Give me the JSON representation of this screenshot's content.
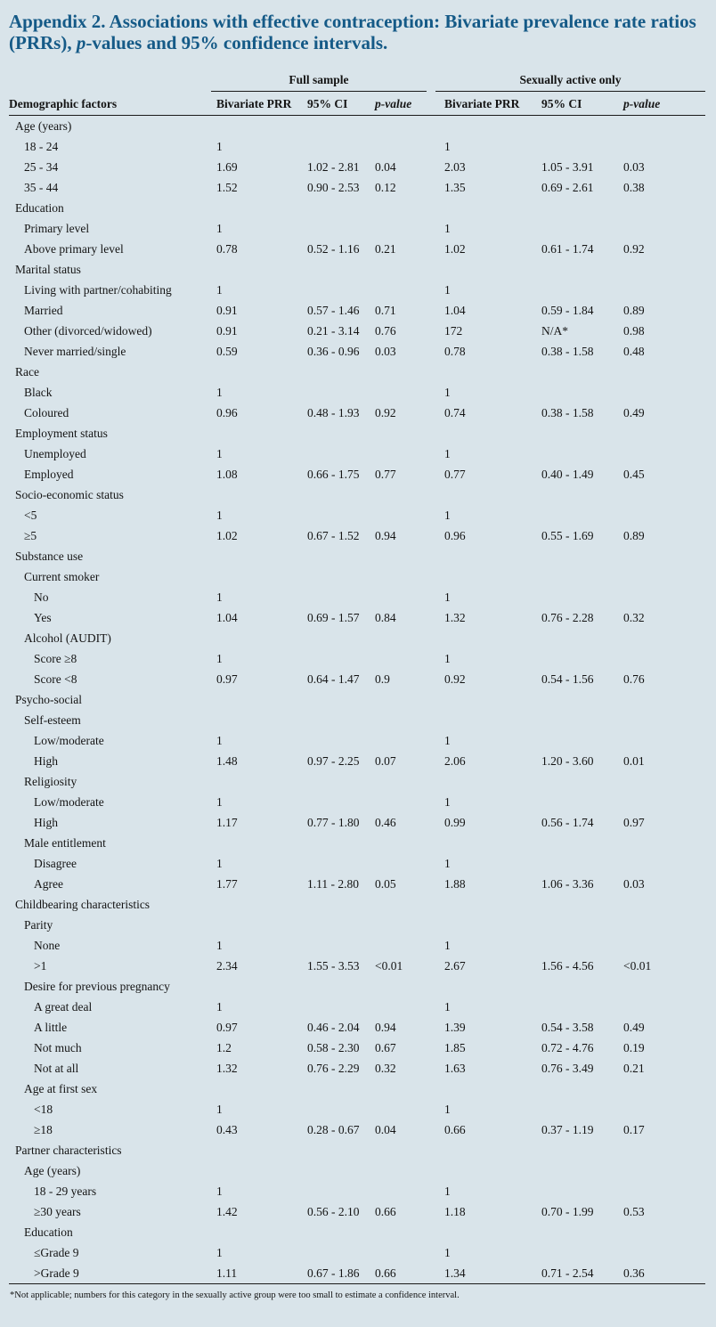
{
  "title": {
    "part1": "Appendix 2. Associations with effective contraception: Bivariate prevalence rate ratios (PRRs), ",
    "italic_p": "p",
    "part2": "-values and 95% confidence intervals."
  },
  "colors": {
    "background": "#d9e4ea",
    "title": "#155a87",
    "rule": "#1a1a1a"
  },
  "table": {
    "group_headers": {
      "full_sample": "Full sample",
      "sexually_active": "Sexually active only"
    },
    "columns": {
      "factors": "Demographic factors",
      "prr_full": "Bivariate PRR",
      "ci_full": "95% CI",
      "p_full": "p-value",
      "prr_sa": "Bivariate PRR",
      "ci_sa": "95% CI",
      "p_sa": "p-value"
    },
    "rows": [
      {
        "label": "Age (years)",
        "indent": 0,
        "cells": [
          "",
          "",
          "",
          "",
          "",
          ""
        ]
      },
      {
        "label": "18 - 24",
        "indent": 1,
        "cells": [
          "1",
          "",
          "",
          "1",
          "",
          ""
        ]
      },
      {
        "label": "25 - 34",
        "indent": 1,
        "cells": [
          "1.69",
          "1.02 - 2.81",
          "0.04",
          "2.03",
          "1.05 - 3.91",
          "0.03"
        ]
      },
      {
        "label": "35 - 44",
        "indent": 1,
        "cells": [
          "1.52",
          "0.90 - 2.53",
          "0.12",
          "1.35",
          "0.69 - 2.61",
          "0.38"
        ]
      },
      {
        "label": "Education",
        "indent": 0,
        "cells": [
          "",
          "",
          "",
          "",
          "",
          ""
        ]
      },
      {
        "label": "Primary level",
        "indent": 1,
        "cells": [
          "1",
          "",
          "",
          "1",
          "",
          ""
        ]
      },
      {
        "label": "Above primary level",
        "indent": 1,
        "cells": [
          "0.78",
          "0.52 - 1.16",
          "0.21",
          "1.02",
          "0.61 - 1.74",
          "0.92"
        ]
      },
      {
        "label": "Marital status",
        "indent": 0,
        "cells": [
          "",
          "",
          "",
          "",
          "",
          ""
        ]
      },
      {
        "label": "Living with partner/cohabiting",
        "indent": 1,
        "cells": [
          "1",
          "",
          "",
          "1",
          "",
          ""
        ]
      },
      {
        "label": "Married",
        "indent": 1,
        "cells": [
          "0.91",
          "0.57 - 1.46",
          "0.71",
          "1.04",
          "0.59 - 1.84",
          "0.89"
        ]
      },
      {
        "label": "Other (divorced/widowed)",
        "indent": 1,
        "cells": [
          "0.91",
          "0.21 - 3.14",
          "0.76",
          "172",
          "N/A*",
          "0.98"
        ]
      },
      {
        "label": "Never married/single",
        "indent": 1,
        "cells": [
          "0.59",
          "0.36 - 0.96",
          "0.03",
          "0.78",
          "0.38 - 1.58",
          "0.48"
        ]
      },
      {
        "label": "Race",
        "indent": 0,
        "cells": [
          "",
          "",
          "",
          "",
          "",
          ""
        ]
      },
      {
        "label": "Black",
        "indent": 1,
        "cells": [
          "1",
          "",
          "",
          "1",
          "",
          ""
        ]
      },
      {
        "label": "Coloured",
        "indent": 1,
        "cells": [
          "0.96",
          "0.48 - 1.93",
          "0.92",
          "0.74",
          "0.38 - 1.58",
          "0.49"
        ]
      },
      {
        "label": "Employment status",
        "indent": 0,
        "cells": [
          "",
          "",
          "",
          "",
          "",
          ""
        ]
      },
      {
        "label": "Unemployed",
        "indent": 1,
        "cells": [
          "1",
          "",
          "",
          "1",
          "",
          ""
        ]
      },
      {
        "label": "Employed",
        "indent": 1,
        "cells": [
          "1.08",
          "0.66 - 1.75",
          "0.77",
          "0.77",
          "0.40 - 1.49",
          "0.45"
        ]
      },
      {
        "label": "Socio-economic status",
        "indent": 0,
        "cells": [
          "",
          "",
          "",
          "",
          "",
          ""
        ]
      },
      {
        "label": "<5",
        "indent": 1,
        "cells": [
          "1",
          "",
          "",
          "1",
          "",
          ""
        ]
      },
      {
        "label": "≥5",
        "indent": 1,
        "cells": [
          "1.02",
          "0.67 - 1.52",
          "0.94",
          "0.96",
          "0.55 - 1.69",
          "0.89"
        ]
      },
      {
        "label": "Substance use",
        "indent": 0,
        "cells": [
          "",
          "",
          "",
          "",
          "",
          ""
        ]
      },
      {
        "label": "Current smoker",
        "indent": 1,
        "cells": [
          "",
          "",
          "",
          "",
          "",
          ""
        ]
      },
      {
        "label": "No",
        "indent": 2,
        "cells": [
          "1",
          "",
          "",
          "1",
          "",
          ""
        ]
      },
      {
        "label": "Yes",
        "indent": 2,
        "cells": [
          "1.04",
          "0.69 - 1.57",
          "0.84",
          "1.32",
          "0.76 - 2.28",
          "0.32"
        ]
      },
      {
        "label": "Alcohol (AUDIT)",
        "indent": 1,
        "cells": [
          "",
          "",
          "",
          "",
          "",
          ""
        ]
      },
      {
        "label": "Score ≥8",
        "indent": 2,
        "cells": [
          "1",
          "",
          "",
          "1",
          "",
          ""
        ]
      },
      {
        "label": "Score <8",
        "indent": 2,
        "cells": [
          "0.97",
          "0.64 - 1.47",
          "0.9",
          "0.92",
          "0.54 - 1.56",
          "0.76"
        ]
      },
      {
        "label": "Psycho-social",
        "indent": 0,
        "cells": [
          "",
          "",
          "",
          "",
          "",
          ""
        ]
      },
      {
        "label": "Self-esteem",
        "indent": 1,
        "cells": [
          "",
          "",
          "",
          "",
          "",
          ""
        ]
      },
      {
        "label": "Low/moderate",
        "indent": 2,
        "cells": [
          "1",
          "",
          "",
          "1",
          "",
          ""
        ]
      },
      {
        "label": "High",
        "indent": 2,
        "cells": [
          "1.48",
          "0.97 - 2.25",
          "0.07",
          "2.06",
          "1.20 - 3.60",
          "0.01"
        ]
      },
      {
        "label": "Religiosity",
        "indent": 1,
        "cells": [
          "",
          "",
          "",
          "",
          "",
          ""
        ]
      },
      {
        "label": "Low/moderate",
        "indent": 2,
        "cells": [
          "1",
          "",
          "",
          "1",
          "",
          ""
        ]
      },
      {
        "label": "High",
        "indent": 2,
        "cells": [
          "1.17",
          "0.77 - 1.80",
          "0.46",
          "0.99",
          "0.56 - 1.74",
          "0.97"
        ]
      },
      {
        "label": "Male entitlement",
        "indent": 1,
        "cells": [
          "",
          "",
          "",
          "",
          "",
          ""
        ]
      },
      {
        "label": "Disagree",
        "indent": 2,
        "cells": [
          "1",
          "",
          "",
          "1",
          "",
          ""
        ]
      },
      {
        "label": "Agree",
        "indent": 2,
        "cells": [
          "1.77",
          "1.11 - 2.80",
          "0.05",
          "1.88",
          "1.06 - 3.36",
          "0.03"
        ]
      },
      {
        "label": "Childbearing characteristics",
        "indent": 0,
        "cells": [
          "",
          "",
          "",
          "",
          "",
          ""
        ]
      },
      {
        "label": "Parity",
        "indent": 1,
        "cells": [
          "",
          "",
          "",
          "",
          "",
          ""
        ]
      },
      {
        "label": "None",
        "indent": 2,
        "cells": [
          "1",
          "",
          "",
          "1",
          "",
          ""
        ]
      },
      {
        "label": ">1",
        "indent": 2,
        "cells": [
          "2.34",
          "1.55 - 3.53",
          "<0.01",
          "2.67",
          "1.56 - 4.56",
          "<0.01"
        ]
      },
      {
        "label": "Desire for previous pregnancy",
        "indent": 1,
        "cells": [
          "",
          "",
          "",
          "",
          "",
          ""
        ]
      },
      {
        "label": "A great deal",
        "indent": 2,
        "cells": [
          "1",
          "",
          "",
          "1",
          "",
          ""
        ]
      },
      {
        "label": "A little",
        "indent": 2,
        "cells": [
          "0.97",
          "0.46 - 2.04",
          "0.94",
          "1.39",
          "0.54 - 3.58",
          "0.49"
        ]
      },
      {
        "label": "Not much",
        "indent": 2,
        "cells": [
          "1.2",
          "0.58 - 2.30",
          "0.67",
          "1.85",
          "0.72 - 4.76",
          "0.19"
        ]
      },
      {
        "label": "Not at all",
        "indent": 2,
        "cells": [
          "1.32",
          "0.76 - 2.29",
          "0.32",
          "1.63",
          "0.76 - 3.49",
          "0.21"
        ]
      },
      {
        "label": "Age at first sex",
        "indent": 1,
        "cells": [
          "",
          "",
          "",
          "",
          "",
          ""
        ]
      },
      {
        "label": "<18",
        "indent": 2,
        "cells": [
          "1",
          "",
          "",
          "1",
          "",
          ""
        ]
      },
      {
        "label": "≥18",
        "indent": 2,
        "cells": [
          "0.43",
          "0.28 - 0.67",
          "0.04",
          "0.66",
          "0.37 - 1.19",
          "0.17"
        ]
      },
      {
        "label": "Partner characteristics",
        "indent": 0,
        "cells": [
          "",
          "",
          "",
          "",
          "",
          ""
        ]
      },
      {
        "label": "Age (years)",
        "indent": 1,
        "cells": [
          "",
          "",
          "",
          "",
          "",
          ""
        ]
      },
      {
        "label": "18 - 29 years",
        "indent": 2,
        "cells": [
          "1",
          "",
          "",
          "1",
          "",
          ""
        ]
      },
      {
        "label": "≥30 years",
        "indent": 2,
        "cells": [
          "1.42",
          "0.56 - 2.10",
          "0.66",
          "1.18",
          "0.70 - 1.99",
          "0.53"
        ]
      },
      {
        "label": "Education",
        "indent": 1,
        "cells": [
          "",
          "",
          "",
          "",
          "",
          ""
        ]
      },
      {
        "label": "≤Grade 9",
        "indent": 2,
        "cells": [
          "1",
          "",
          "",
          "1",
          "",
          ""
        ]
      },
      {
        "label": ">Grade 9",
        "indent": 2,
        "cells": [
          "1.11",
          "0.67 - 1.86",
          "0.66",
          "1.34",
          "0.71 - 2.54",
          "0.36"
        ]
      }
    ]
  },
  "footnote": "*Not applicable; numbers for this category in the sexually active group were too small to estimate a confidence interval."
}
